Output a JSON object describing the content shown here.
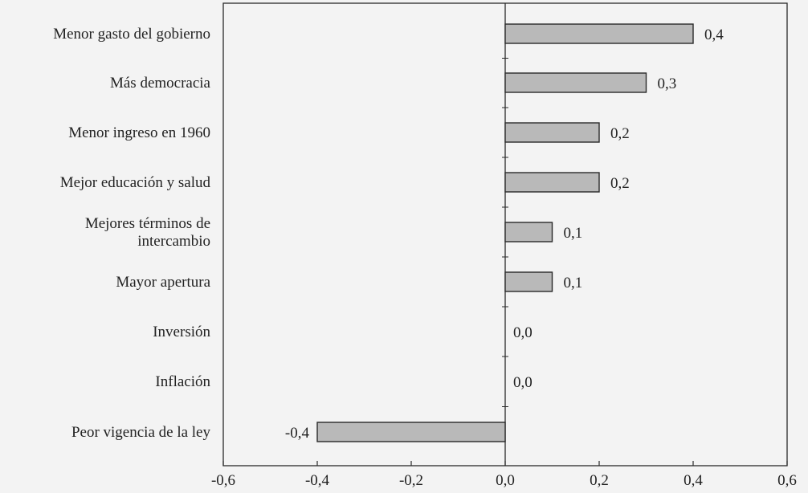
{
  "chart_data": {
    "type": "bar",
    "orientation": "horizontal",
    "categories": [
      [
        "Menor gasto del gobierno"
      ],
      [
        "Más democracia"
      ],
      [
        "Menor ingreso en 1960"
      ],
      [
        "Mejor educación y salud"
      ],
      [
        "Mejores términos de",
        "intercambio"
      ],
      [
        "Mayor apertura"
      ],
      [
        "Inversión"
      ],
      [
        "Inflación"
      ],
      [
        "Peor vigencia de la ley"
      ]
    ],
    "values": [
      0.4,
      0.3,
      0.2,
      0.2,
      0.1,
      0.1,
      0.0,
      0.0,
      -0.4
    ],
    "value_labels": [
      "0,4",
      "0,3",
      "0,2",
      "0,2",
      "0,1",
      "0,1",
      "0,0",
      "0,0",
      "-0,4"
    ],
    "xlim": [
      -0.6,
      0.6
    ],
    "xticks": [
      -0.6,
      -0.4,
      -0.2,
      0.0,
      0.2,
      0.4,
      0.6
    ],
    "xtick_labels": [
      "-0,6",
      "-0,4",
      "-0,2",
      "0,0",
      "0,2",
      "0,4",
      "0,6"
    ],
    "grid": false,
    "colors": {
      "bar_fill": "#b9b9b9",
      "bar_stroke": "#2a2a2a",
      "axis": "#2a2a2a",
      "background": "#f3f3f3"
    }
  }
}
